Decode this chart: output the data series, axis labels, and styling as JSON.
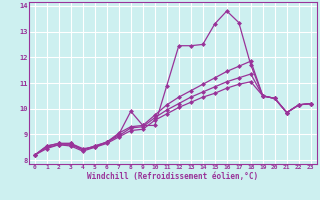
{
  "xlabel": "Windchill (Refroidissement éolien,°C)",
  "background_color": "#cdf0f0",
  "line_color": "#993399",
  "grid_color": "#ffffff",
  "xlim": [
    -0.5,
    23.5
  ],
  "ylim": [
    7.85,
    14.15
  ],
  "yticks": [
    8,
    9,
    10,
    11,
    12,
    13,
    14
  ],
  "xticks": [
    0,
    1,
    2,
    3,
    4,
    5,
    6,
    7,
    8,
    9,
    10,
    11,
    12,
    13,
    14,
    15,
    16,
    17,
    18,
    19,
    20,
    21,
    22,
    23
  ],
  "series": [
    [
      8.2,
      8.55,
      8.65,
      8.65,
      8.45,
      8.5,
      8.7,
      9.0,
      9.9,
      9.35,
      9.35,
      10.9,
      12.45,
      12.45,
      12.5,
      13.3,
      13.8,
      13.35,
      11.7,
      10.5,
      10.4,
      9.85,
      10.15,
      10.2
    ],
    [
      8.2,
      8.55,
      8.65,
      8.65,
      8.4,
      8.55,
      8.7,
      9.05,
      9.3,
      9.35,
      9.75,
      10.15,
      10.45,
      10.7,
      10.95,
      11.2,
      11.45,
      11.65,
      11.85,
      10.5,
      10.4,
      9.85,
      10.15,
      10.2
    ],
    [
      8.2,
      8.5,
      8.6,
      8.6,
      8.4,
      8.55,
      8.7,
      8.95,
      9.25,
      9.3,
      9.65,
      9.95,
      10.2,
      10.45,
      10.65,
      10.85,
      11.05,
      11.2,
      11.35,
      10.5,
      10.4,
      9.85,
      10.15,
      10.2
    ],
    [
      8.2,
      8.45,
      8.6,
      8.55,
      8.35,
      8.5,
      8.65,
      8.9,
      9.15,
      9.2,
      9.55,
      9.8,
      10.05,
      10.25,
      10.45,
      10.6,
      10.8,
      10.95,
      11.05,
      10.5,
      10.4,
      9.85,
      10.15,
      10.2
    ]
  ]
}
